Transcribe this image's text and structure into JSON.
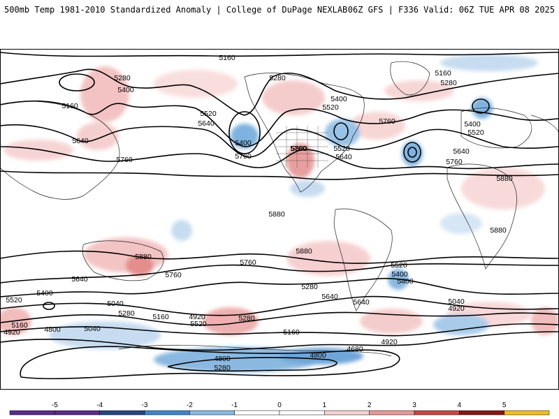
{
  "header": {
    "left": "500mb Temp 1981-2010 Standardized Anomaly | College of DuPage NEXLAB",
    "right": "06Z GFS | F336 Valid: 06Z TUE APR 08 2025"
  },
  "colorbar": {
    "ticks": [
      "-5",
      "-4",
      "-3",
      "-2",
      "-1",
      "0",
      "1",
      "2",
      "3",
      "4",
      "5"
    ],
    "colors": [
      "#5a2a8a",
      "#27457e",
      "#3e86c8",
      "#8ab8e0",
      "#c7dcf0",
      "#ffffff",
      "#f6d2d2",
      "#e79a9a",
      "#cf4444",
      "#8c1515",
      "#f0c020"
    ]
  },
  "map": {
    "contour_labels": [
      {
        "id": "c1",
        "text": "5160"
      },
      {
        "id": "c2",
        "text": "5280"
      },
      {
        "id": "c3",
        "text": "5400"
      },
      {
        "id": "c4",
        "text": "5160"
      },
      {
        "id": "c5",
        "text": "5640"
      },
      {
        "id": "c6",
        "text": "5760"
      },
      {
        "id": "c7",
        "text": "5520"
      },
      {
        "id": "c8",
        "text": "5640"
      },
      {
        "id": "c9",
        "text": "5400"
      },
      {
        "id": "c10",
        "text": "5760"
      },
      {
        "id": "c11",
        "text": "5280"
      },
      {
        "id": "c12",
        "text": "5400"
      },
      {
        "id": "c13",
        "text": "5520"
      },
      {
        "id": "c14",
        "text": "5880"
      },
      {
        "id": "c15",
        "text": "5520"
      },
      {
        "id": "c16",
        "text": "5640"
      },
      {
        "id": "c17",
        "text": "5760"
      },
      {
        "id": "c18",
        "text": "5160"
      },
      {
        "id": "c19",
        "text": "5280"
      },
      {
        "id": "c20",
        "text": "5400"
      },
      {
        "id": "c21",
        "text": "5520"
      },
      {
        "id": "c22",
        "text": "5640"
      },
      {
        "id": "c23",
        "text": "5760"
      },
      {
        "id": "c24",
        "text": "5880"
      },
      {
        "id": "c25",
        "text": "5880"
      },
      {
        "id": "c26",
        "text": "5880"
      },
      {
        "id": "c27",
        "text": "5880"
      },
      {
        "id": "c28",
        "text": "5880"
      },
      {
        "id": "c29",
        "text": "5760"
      },
      {
        "id": "c30",
        "text": "5760"
      },
      {
        "id": "c31",
        "text": "5640"
      },
      {
        "id": "c32",
        "text": "5760"
      },
      {
        "id": "c33",
        "text": "5520"
      },
      {
        "id": "c34",
        "text": "5400"
      },
      {
        "id": "c35",
        "text": "5400"
      },
      {
        "id": "c36",
        "text": "5280"
      },
      {
        "id": "c37",
        "text": "5640"
      },
      {
        "id": "c38",
        "text": "5640"
      },
      {
        "id": "c39",
        "text": "5520"
      },
      {
        "id": "c40",
        "text": "5400"
      },
      {
        "id": "c41",
        "text": "5040"
      },
      {
        "id": "c42",
        "text": "5280"
      },
      {
        "id": "c43",
        "text": "5160"
      },
      {
        "id": "c44",
        "text": "4920"
      },
      {
        "id": "c45",
        "text": "5520"
      },
      {
        "id": "c46",
        "text": "5280"
      },
      {
        "id": "c47",
        "text": "5160"
      },
      {
        "id": "c48",
        "text": "4920"
      },
      {
        "id": "c49",
        "text": "4800"
      },
      {
        "id": "c50",
        "text": "5040"
      },
      {
        "id": "c51",
        "text": "5160"
      },
      {
        "id": "c52",
        "text": "4920"
      },
      {
        "id": "c53",
        "text": "4680"
      },
      {
        "id": "c54",
        "text": "4800"
      },
      {
        "id": "c55",
        "text": "4800"
      },
      {
        "id": "c56",
        "text": "5280"
      },
      {
        "id": "c57",
        "text": "5040"
      },
      {
        "id": "c58",
        "text": "4920"
      }
    ]
  }
}
